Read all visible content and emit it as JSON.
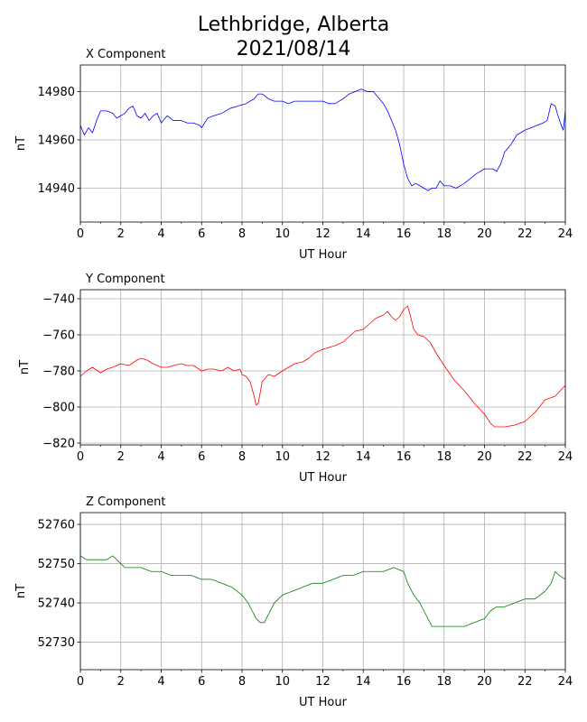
{
  "figure": {
    "title_line1": "Lethbridge, Alberta",
    "title_line2": "2021/08/14"
  },
  "chart_data": [
    {
      "type": "line",
      "title": "X Component",
      "xlabel": "UT Hour",
      "ylabel": "nT",
      "xlim": [
        0,
        24
      ],
      "ylim": [
        14926,
        14991
      ],
      "xticks": [
        0,
        2,
        4,
        6,
        8,
        10,
        12,
        14,
        16,
        18,
        20,
        22,
        24
      ],
      "yticks": [
        14940,
        14960,
        14980
      ],
      "grid": true,
      "color": "#0000ff",
      "series": [
        {
          "x": [
            0,
            0.2,
            0.4,
            0.6,
            0.8,
            1.0,
            1.3,
            1.6,
            1.8,
            2.0,
            2.2,
            2.4,
            2.6,
            2.8,
            3.0,
            3.2,
            3.4,
            3.6,
            3.8,
            4.0,
            4.3,
            4.6,
            5.0,
            5.3,
            5.6,
            5.9,
            6.0,
            6.3,
            6.6,
            7.0,
            7.4,
            7.8,
            8.2,
            8.6,
            8.8,
            9.0,
            9.3,
            9.6,
            10.0,
            10.3,
            10.6,
            11.0,
            11.3,
            11.6,
            12.0,
            12.3,
            12.6,
            13.0,
            13.3,
            13.6,
            13.9,
            14.2,
            14.5,
            14.8,
            15.0,
            15.2,
            15.4,
            15.6,
            15.8,
            16.0,
            16.2,
            16.4,
            16.6,
            16.8,
            17.0,
            17.2,
            17.4,
            17.6,
            17.8,
            18.0,
            18.3,
            18.6,
            19.0,
            19.3,
            19.6,
            20.0,
            20.2,
            20.4,
            20.6,
            20.8,
            21.0,
            21.3,
            21.6,
            22.0,
            22.3,
            22.6,
            22.9,
            23.1,
            23.3,
            23.5,
            23.6,
            23.8,
            23.9,
            24.0
          ],
          "y": [
            14966,
            14962,
            14965,
            14963,
            14968,
            14972,
            14972,
            14971,
            14969,
            14970,
            14971,
            14973,
            14974,
            14970,
            14969,
            14971,
            14968,
            14970,
            14971,
            14967,
            14970,
            14968,
            14968,
            14967,
            14967,
            14966,
            14965,
            14969,
            14970,
            14971,
            14973,
            14974,
            14975,
            14977,
            14979,
            14979,
            14977,
            14976,
            14976,
            14975,
            14976,
            14976,
            14976,
            14976,
            14976,
            14975,
            14975,
            14977,
            14979,
            14980,
            14981,
            14980,
            14980,
            14977,
            14975,
            14972,
            14968,
            14964,
            14958,
            14950,
            14944,
            14941,
            14942,
            14941,
            14940,
            14939,
            14940,
            14940,
            14943,
            14941,
            14941,
            14940,
            14942,
            14944,
            14946,
            14948,
            14948,
            14948,
            14947,
            14950,
            14955,
            14958,
            14962,
            14964,
            14965,
            14966,
            14967,
            14968,
            14975,
            14974,
            14971,
            14966,
            14964,
            14972
          ]
        }
      ]
    },
    {
      "type": "line",
      "title": "Y Component",
      "xlabel": "UT Hour",
      "ylabel": "nT",
      "xlim": [
        0,
        24
      ],
      "ylim": [
        -821,
        -735
      ],
      "xticks": [
        0,
        2,
        4,
        6,
        8,
        10,
        12,
        14,
        16,
        18,
        20,
        22,
        24
      ],
      "yticks": [
        -820,
        -800,
        -780,
        -760,
        -740
      ],
      "grid": true,
      "color": "#ff0000",
      "series": [
        {
          "x": [
            0,
            0.3,
            0.6,
            1.0,
            1.3,
            1.6,
            2.0,
            2.4,
            2.8,
            3.0,
            3.3,
            3.6,
            4.0,
            4.3,
            4.6,
            5.0,
            5.3,
            5.6,
            6.0,
            6.3,
            6.6,
            7.0,
            7.3,
            7.6,
            7.9,
            8.0,
            8.2,
            8.4,
            8.6,
            8.7,
            8.8,
            9.0,
            9.3,
            9.6,
            10.0,
            10.3,
            10.6,
            11.0,
            11.3,
            11.6,
            12.0,
            12.3,
            12.6,
            13.0,
            13.3,
            13.6,
            14.0,
            14.3,
            14.6,
            15.0,
            15.2,
            15.4,
            15.6,
            15.8,
            16.0,
            16.2,
            16.3,
            16.5,
            16.7,
            17.0,
            17.3,
            17.6,
            18.0,
            18.5,
            19.0,
            19.5,
            20.0,
            20.3,
            20.5,
            20.8,
            21.0,
            21.5,
            22.0,
            22.5,
            23.0,
            23.5,
            24.0
          ],
          "y": [
            -783,
            -780,
            -778,
            -781,
            -779,
            -778,
            -776,
            -777,
            -774,
            -773,
            -774,
            -776,
            -778,
            -778,
            -777,
            -776,
            -777,
            -777,
            -780,
            -779,
            -779,
            -780,
            -778,
            -780,
            -779,
            -782,
            -783,
            -786,
            -794,
            -799,
            -798,
            -786,
            -782,
            -783,
            -780,
            -778,
            -776,
            -775,
            -773,
            -770,
            -768,
            -767,
            -766,
            -764,
            -761,
            -758,
            -757,
            -754,
            -751,
            -749,
            -747,
            -750,
            -752,
            -750,
            -746,
            -744,
            -748,
            -757,
            -760,
            -761,
            -764,
            -770,
            -777,
            -785,
            -791,
            -798,
            -804,
            -809,
            -811,
            -811,
            -811,
            -810,
            -808,
            -803,
            -796,
            -794,
            -788
          ]
        }
      ]
    },
    {
      "type": "line",
      "title": "Z Component",
      "xlabel": "UT Hour",
      "ylabel": "nT",
      "xlim": [
        0,
        24
      ],
      "ylim": [
        52723,
        52763
      ],
      "xticks": [
        0,
        2,
        4,
        6,
        8,
        10,
        12,
        14,
        16,
        18,
        20,
        22,
        24
      ],
      "yticks": [
        52730,
        52740,
        52750,
        52760
      ],
      "grid": true,
      "color": "#008000",
      "series": [
        {
          "x": [
            0,
            0.3,
            0.6,
            1.0,
            1.3,
            1.6,
            1.8,
            2.0,
            2.2,
            2.5,
            3.0,
            3.5,
            4.0,
            4.5,
            5.0,
            5.5,
            6.0,
            6.5,
            7.0,
            7.5,
            8.0,
            8.3,
            8.5,
            8.7,
            8.9,
            9.1,
            9.3,
            9.6,
            10.0,
            10.5,
            11.0,
            11.5,
            12.0,
            12.5,
            13.0,
            13.5,
            14.0,
            14.5,
            15.0,
            15.5,
            16.0,
            16.2,
            16.5,
            16.8,
            17.0,
            17.2,
            17.4,
            17.6,
            18.0,
            18.5,
            19.0,
            19.5,
            20.0,
            20.3,
            20.6,
            21.0,
            21.5,
            22.0,
            22.5,
            23.0,
            23.3,
            23.5,
            23.7,
            24.0
          ],
          "y": [
            52752,
            52751,
            52751,
            52751,
            52751,
            52752,
            52751,
            52750,
            52749,
            52749,
            52749,
            52748,
            52748,
            52747,
            52747,
            52747,
            52746,
            52746,
            52745,
            52744,
            52742,
            52740,
            52738,
            52736,
            52735,
            52735,
            52737,
            52740,
            52742,
            52743,
            52744,
            52745,
            52745,
            52746,
            52747,
            52747,
            52748,
            52748,
            52748,
            52749,
            52748,
            52745,
            52742,
            52740,
            52738,
            52736,
            52734,
            52734,
            52734,
            52734,
            52734,
            52735,
            52736,
            52738,
            52739,
            52739,
            52740,
            52741,
            52741,
            52743,
            52745,
            52748,
            52747,
            52746
          ]
        }
      ]
    }
  ]
}
